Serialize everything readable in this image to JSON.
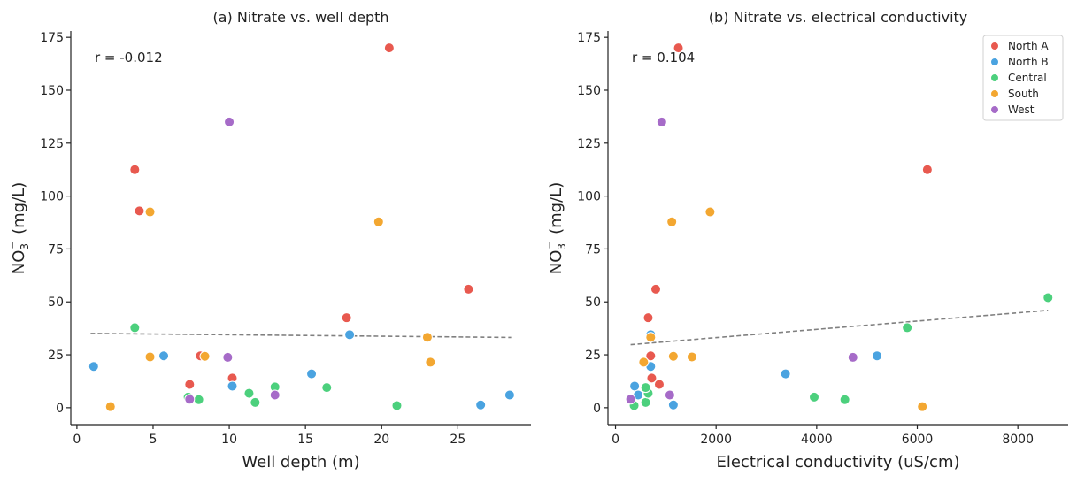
{
  "colors": {
    "North A": "#e8594f",
    "North B": "#4aa3e0",
    "Central": "#4cd07d",
    "South": "#f3a731",
    "West": "#a66bc8",
    "trend": "#808080"
  },
  "chart_data": [
    {
      "type": "scatter",
      "title": "(a) Nitrate vs. well depth",
      "xlabel": "Well depth (m)",
      "ylabel_main": "NO",
      "ylabel_sub": "3",
      "ylabel_sup": "−",
      "ylabel_unit": "(mg/L)",
      "xlim": [
        -0.4,
        29.8
      ],
      "ylim": [
        -8,
        178
      ],
      "xticks": [
        0,
        5,
        10,
        15,
        20,
        25
      ],
      "yticks": [
        0,
        25,
        50,
        75,
        100,
        125,
        150,
        175
      ],
      "annotation": "r = -0.012",
      "trendline": [
        [
          0.9,
          35.1
        ],
        [
          28.5,
          33.2
        ]
      ],
      "series": [
        {
          "name": "North A",
          "points": [
            [
              3.8,
              112.5
            ],
            [
              4.1,
              93
            ],
            [
              7.4,
              11
            ],
            [
              8.1,
              24.5
            ],
            [
              10.2,
              14
            ],
            [
              17.7,
              42.5
            ],
            [
              20.5,
              170
            ],
            [
              25.7,
              56
            ]
          ]
        },
        {
          "name": "North B",
          "points": [
            [
              1.1,
              19.5
            ],
            [
              5.7,
              24.5
            ],
            [
              10.2,
              10.2
            ],
            [
              15.4,
              16
            ],
            [
              17.9,
              34.5
            ],
            [
              26.5,
              1.3
            ],
            [
              28.4,
              6
            ]
          ]
        },
        {
          "name": "Central",
          "points": [
            [
              3.8,
              37.8
            ],
            [
              7.3,
              5
            ],
            [
              8.0,
              3.8
            ],
            [
              11.3,
              6.8
            ],
            [
              11.7,
              2.5
            ],
            [
              13.0,
              9.8
            ],
            [
              16.4,
              9.5
            ],
            [
              21.0,
              1
            ]
          ]
        },
        {
          "name": "South",
          "points": [
            [
              2.2,
              0.5
            ],
            [
              4.8,
              24
            ],
            [
              4.8,
              92.5
            ],
            [
              8.4,
              24.3
            ],
            [
              19.8,
              87.8
            ],
            [
              23.0,
              33.3
            ],
            [
              23.2,
              21.5
            ]
          ]
        },
        {
          "name": "West",
          "points": [
            [
              7.4,
              4
            ],
            [
              9.9,
              23.8
            ],
            [
              10.0,
              135
            ],
            [
              13.0,
              6
            ]
          ]
        }
      ]
    },
    {
      "type": "scatter",
      "title": "(b) Nitrate vs. electrical conductivity",
      "xlabel": "Electrical conductivity (uS/cm)",
      "ylabel_main": "NO",
      "ylabel_sub": "3",
      "ylabel_sup": "−",
      "ylabel_unit": "(mg/L)",
      "xlim": [
        -150,
        9000
      ],
      "ylim": [
        -8,
        178
      ],
      "xticks": [
        0,
        2000,
        4000,
        6000,
        8000
      ],
      "yticks": [
        0,
        25,
        50,
        75,
        100,
        125,
        150,
        175
      ],
      "annotation": "r = 0.104",
      "trendline": [
        [
          300,
          29.8
        ],
        [
          8600,
          46
        ]
      ],
      "legend": {
        "position": "top-right",
        "entries": [
          "North A",
          "North B",
          "Central",
          "South",
          "West"
        ]
      },
      "series": [
        {
          "name": "North A",
          "points": [
            [
              1250,
              170
            ],
            [
              6200,
              112.5
            ],
            [
              650,
              42.5
            ],
            [
              800,
              56
            ],
            [
              700,
              24.5
            ],
            [
              720,
              14
            ],
            [
              870,
              11
            ]
          ]
        },
        {
          "name": "North B",
          "points": [
            [
              700,
              34.5
            ],
            [
              700,
              19.5
            ],
            [
              380,
              10.2
            ],
            [
              450,
              6
            ],
            [
              1150,
              1.3
            ],
            [
              3380,
              16
            ],
            [
              5200,
              24.5
            ]
          ]
        },
        {
          "name": "Central",
          "points": [
            [
              370,
              1
            ],
            [
              600,
              2.5
            ],
            [
              650,
              6.8
            ],
            [
              600,
              9.5
            ],
            [
              3950,
              5
            ],
            [
              4560,
              3.8
            ],
            [
              5800,
              37.8
            ],
            [
              8600,
              52
            ]
          ]
        },
        {
          "name": "South",
          "points": [
            [
              1120,
              87.8
            ],
            [
              1880,
              92.5
            ],
            [
              700,
              33.3
            ],
            [
              560,
              21.5
            ],
            [
              1150,
              24.3
            ],
            [
              1520,
              24
            ],
            [
              6100,
              0.5
            ]
          ]
        },
        {
          "name": "West",
          "points": [
            [
              920,
              135
            ],
            [
              1080,
              6
            ],
            [
              300,
              4
            ],
            [
              4720,
              23.8
            ]
          ]
        }
      ]
    }
  ]
}
